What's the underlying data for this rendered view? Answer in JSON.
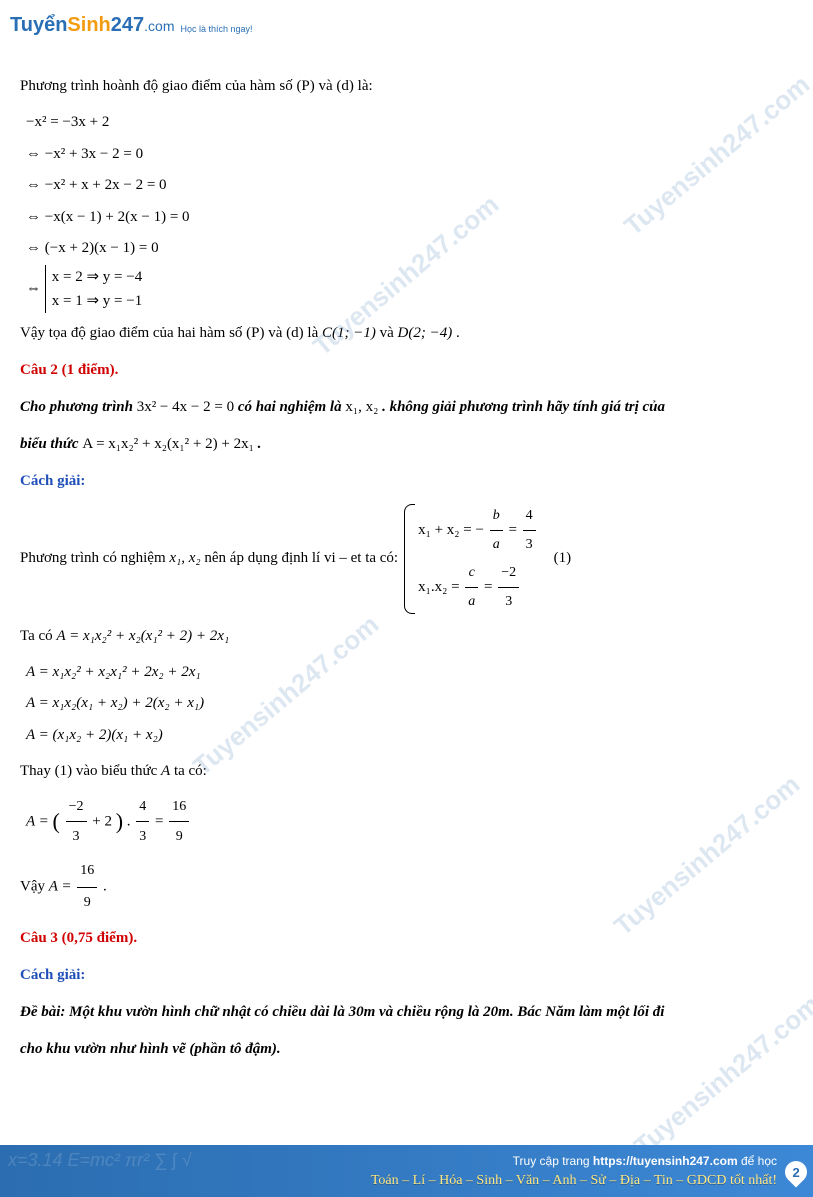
{
  "logo": {
    "part1": "Tuyển",
    "part2": "Sinh",
    "part3": "247",
    "part4": ".com",
    "tagline": "Học là thích ngay!"
  },
  "watermark": "Tuyensinh247.com",
  "body": {
    "p1": "Phương trình hoành độ giao điểm của hàm số (P) và (d) là:",
    "eq": {
      "l1": "−x² = −3x + 2",
      "l2": "⇔ −x² + 3x − 2 = 0",
      "l3": "⇔ −x² + x + 2x − 2 = 0",
      "l4": "⇔ −x(x − 1) + 2(x − 1) = 0",
      "l5": "⇔ (−x + 2)(x − 1) = 0",
      "sys1": "x = 2 ⇒ y = −4",
      "sys2": "x = 1 ⇒ y = −1"
    },
    "p2_pre": "Vậy tọa độ giao điểm của hai hàm số (P) và (d) là ",
    "p2_c": "C(1; −1)",
    "p2_mid": " và ",
    "p2_d": "D(2; −4)",
    "p2_post": " .",
    "cau2": "Câu 2 (1 điểm).",
    "cau2_de_1": "Cho phương trình  ",
    "cau2_eq1": "3x² − 4x − 2 = 0",
    "cau2_de_2": "  có hai nghiệm là  ",
    "cau2_x12": "x₁, x₂",
    "cau2_de_3": ". không giải phương trình hãy tính giá trị của",
    "cau2_de_4": "biểu thức  ",
    "cau2_A": "A = x₁x₂² + x₂(x₁² + 2) + 2x₁",
    "cau2_de_5": ".",
    "cachgiai": "Cách giải:",
    "vieta_pre": "Phương trình có nghiệm ",
    "vieta_x12": "x₁, x₂",
    "vieta_mid": " nên áp dụng định lí vi – et ta có: ",
    "vieta": {
      "r1_lhs": "x₁ + x₂ = −",
      "r1_b": "b",
      "r1_a": "a",
      "r1_eq": " = ",
      "r1_4": "4",
      "r1_3": "3",
      "r2_lhs": "x₁.x₂ = ",
      "r2_c": "c",
      "r2_a": "a",
      "r2_eq": " = ",
      "r2_n2": "−2",
      "r2_d3": "3",
      "num": "(1)"
    },
    "taco": "Ta có ",
    "A_expr": "A = x₁x₂² + x₂(x₁² + 2) + 2x₁",
    "A2": "A = x₁x₂² + x₂x₁² + 2x₂ + 2x₁",
    "A3": "A = x₁x₂(x₁ + x₂) + 2(x₂ + x₁)",
    "A4": "A = (x₁x₂ + 2)(x₁ + x₂)",
    "thay_pre": "Thay ",
    "thay_1": "(1)",
    "thay_mid": " vào biểu thức ",
    "thay_A": "A",
    "thay_post": " ta có:",
    "Afinal_pre": "A = ",
    "Afinal_n1": "−2",
    "Afinal_d1": "3",
    "Afinal_plus": " + 2",
    "Afinal_dot": " . ",
    "Afinal_n2": "4",
    "Afinal_d2": "3",
    "Afinal_eq": " = ",
    "Afinal_n3": "16",
    "Afinal_d3": "9",
    "vay_pre": "Vậy  ",
    "vay_A": "A = ",
    "vay_n": "16",
    "vay_d": "9",
    "vay_post": " .",
    "cau3": "Câu 3 (0,75 điểm).",
    "debai_label": "Đề bài: ",
    "debai_1": "Một khu vườn hình chữ nhật có chiều dài là 30m và chiều rộng là 20m. Bác Năm làm một lối đi",
    "debai_2": "cho khu vườn như hình vẽ (phần tô đậm)."
  },
  "footer": {
    "line1_pre": "Truy cập trang ",
    "line1_url": "https://tuyensinh247.com",
    "line1_post": " để học",
    "line2": "Toán – Lí – Hóa – Sinh – Văn – Anh – Sử – Địa – Tin – GDCD tốt nhất!",
    "page": "2",
    "bgmath": "x=3.14   E=mc²   πr²   ∑ ∫ √"
  }
}
